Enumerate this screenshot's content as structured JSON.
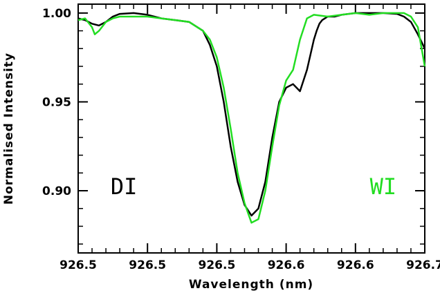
{
  "chart_data": {
    "type": "line",
    "xlabel": "Wavelength (nm)",
    "ylabel": "Normalised Intensity",
    "x_tick_labels": [
      "926.5",
      "926.5",
      "926.5",
      "926.6",
      "926.6",
      "926.7"
    ],
    "y_tick_labels": [
      "0.90",
      "0.95",
      "1.00"
    ],
    "xlim": [
      926.45,
      926.7
    ],
    "ylim": [
      0.865,
      1.005
    ],
    "x_ticks": [
      926.45,
      926.5,
      926.55,
      926.6,
      926.65,
      926.7
    ],
    "y_ticks": [
      0.9,
      0.95,
      1.0
    ],
    "grid": false,
    "annotations": [
      {
        "text": "DI",
        "color": "#000000",
        "x": 926.483,
        "y": 0.898
      },
      {
        "text": "WI",
        "color": "#22dd22",
        "x": 926.67,
        "y": 0.898
      }
    ],
    "series": [
      {
        "label": "DI",
        "color": "#000000",
        "x": [
          926.45,
          926.455,
          926.46,
          926.465,
          926.47,
          926.475,
          926.48,
          926.49,
          926.5,
          926.51,
          926.52,
          926.53,
          926.54,
          926.545,
          926.55,
          926.555,
          926.56,
          926.565,
          926.57,
          926.575,
          926.58,
          926.585,
          926.59,
          926.595,
          926.6,
          926.605,
          926.61,
          926.615,
          926.62,
          926.622,
          926.624,
          926.626,
          926.63,
          926.635,
          926.64,
          926.65,
          926.66,
          926.67,
          926.68,
          926.685,
          926.69,
          926.695,
          926.7
        ],
        "y": [
          0.997,
          0.996,
          0.994,
          0.993,
          0.995,
          0.998,
          0.9995,
          1.0,
          0.999,
          0.997,
          0.996,
          0.995,
          0.99,
          0.982,
          0.97,
          0.95,
          0.925,
          0.905,
          0.892,
          0.886,
          0.89,
          0.905,
          0.93,
          0.95,
          0.958,
          0.96,
          0.956,
          0.968,
          0.985,
          0.99,
          0.994,
          0.996,
          0.998,
          0.998,
          0.999,
          1.0,
          1.0,
          1.0,
          0.9995,
          0.998,
          0.995,
          0.988,
          0.98
        ]
      },
      {
        "label": "WI",
        "color": "#22dd22",
        "x": [
          926.45,
          926.455,
          926.46,
          926.462,
          926.465,
          926.47,
          926.475,
          926.48,
          926.49,
          926.5,
          926.51,
          926.52,
          926.53,
          926.54,
          926.545,
          926.55,
          926.555,
          926.56,
          926.565,
          926.57,
          926.575,
          926.58,
          926.585,
          926.59,
          926.595,
          926.6,
          926.605,
          926.61,
          926.615,
          926.62,
          926.63,
          926.64,
          926.65,
          926.66,
          926.67,
          926.68,
          926.685,
          926.69,
          926.695,
          926.7
        ],
        "y": [
          0.996,
          0.997,
          0.992,
          0.988,
          0.99,
          0.995,
          0.997,
          0.998,
          0.998,
          0.998,
          0.997,
          0.996,
          0.995,
          0.99,
          0.985,
          0.975,
          0.958,
          0.935,
          0.91,
          0.893,
          0.882,
          0.884,
          0.9,
          0.925,
          0.948,
          0.962,
          0.968,
          0.985,
          0.997,
          0.999,
          0.998,
          0.999,
          1.0,
          0.999,
          1.0,
          1.0,
          1.0,
          0.998,
          0.992,
          0.97
        ]
      }
    ]
  }
}
